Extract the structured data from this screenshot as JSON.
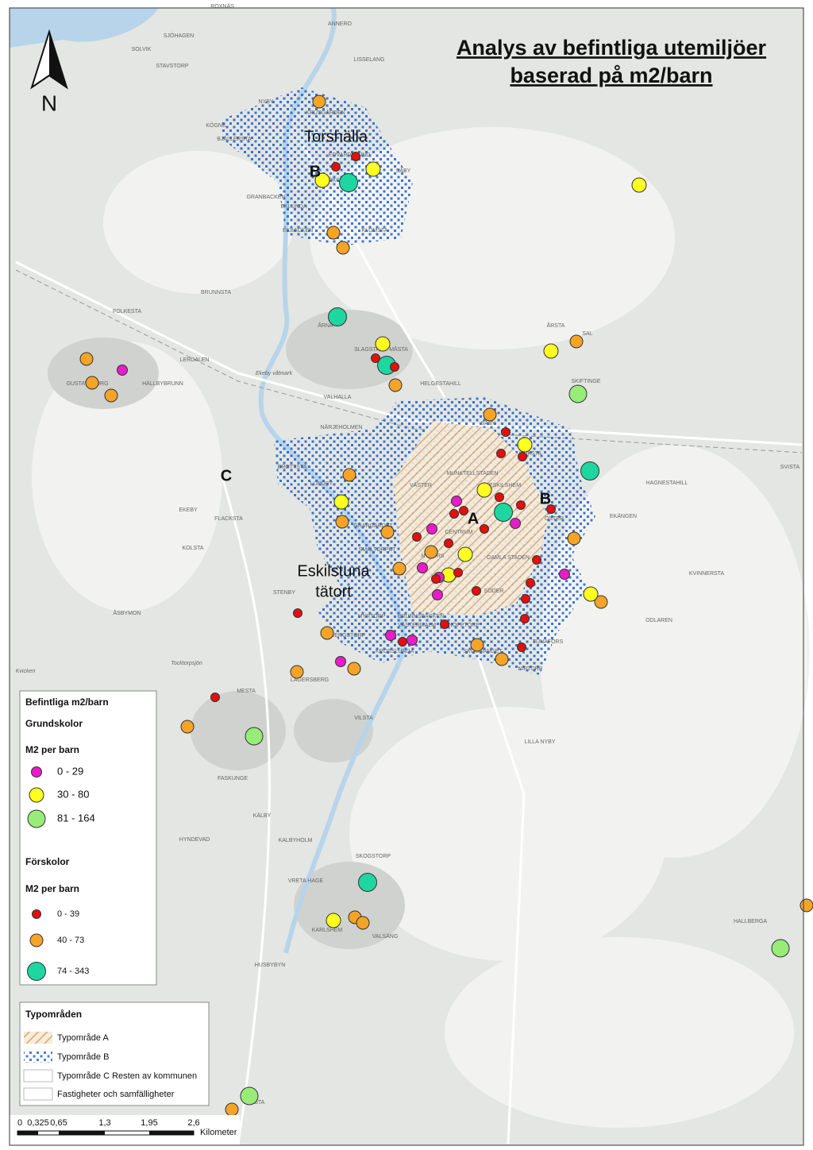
{
  "title_line1": "Analys av befintliga utemiljöer",
  "title_line2": "baserad på m2/barn",
  "north_label": "N",
  "area_labels": [
    "Torshälla",
    "Eskilstuna",
    "tätort",
    "A",
    "B",
    "B",
    "C"
  ],
  "legend_schools": {
    "title": "Befintliga m2/barn",
    "group1": "Grundskolor",
    "unit1": "M2 per barn",
    "classes1": [
      {
        "label": "0 - 29",
        "color": "#e81cc8"
      },
      {
        "label": "30 - 80",
        "color": "#ffff20"
      },
      {
        "label": "81 - 164",
        "color": "#98ec78"
      }
    ],
    "group2": "Förskolor",
    "unit2": "M2 per barn",
    "classes2": [
      {
        "label": "0 - 39",
        "color": "#e60e0e"
      },
      {
        "label": "40 - 73",
        "color": "#f5a428"
      },
      {
        "label": "74 - 343",
        "color": "#1ed6a0"
      }
    ]
  },
  "legend_types": {
    "title": "Typområden",
    "items": [
      "Typområde A",
      "Typområde B",
      "Typområde C Resten av kommunen",
      "Fastigheter och samfälligheter"
    ]
  },
  "scale_bar": {
    "labels": [
      "0",
      "0,325",
      "0,65",
      "1,3",
      "1,95",
      "2,6"
    ],
    "unit": "Kilometer"
  },
  "place_names": [
    "ANNERO",
    "ROXNÄS",
    "SJÖHAGEN",
    "SOLVIK",
    "STAVSTORP",
    "LISSELANG",
    "NYBY",
    "KRUSGÅRDEN",
    "KÖGNE",
    "BJÄLLERSTA",
    "EDVARDSLUND",
    "SÄBY",
    "GÖKSTEN",
    "GRANBACKEN",
    "EKLUNDA",
    "EKBACKEN",
    "KLOMSTA",
    "BRUNNSTA",
    "FOLKESTA",
    "ÅRNA",
    "SLAGSTA",
    "MÅSTA",
    "ÅRSTA",
    "SAL",
    "LERDALEN",
    "GUSTAVSBORG",
    "HÄLLBYBRUNN",
    "HELGESTAHILL",
    "VALHALLA",
    "SKIFTINGE",
    "NÄRJEHOLMEN",
    "SÄBY",
    "ROKSTA",
    "BROTTSTA",
    "VÄSTER",
    "MUNKTELLSTADEN",
    "ESKILSHEM",
    "LUNDBY",
    "HAGNESTAHILL",
    "SVISTA",
    "EKEBY",
    "FLACKSTA",
    "ÖSTER",
    "EKÄNGEN",
    "GRANGÄRDET",
    "CENTRUM",
    "KOLSTA",
    "SMALTORPET",
    "NYFORS",
    "GAMLA STADEN",
    "SÖDER",
    "STENBY",
    "KVINNERSTA",
    "ÅSBYMON",
    "MYRTORP",
    "BRUNNSBACKEN",
    "VÄSTERMALM",
    "SNOPPTORP",
    "ODLAREN",
    "FÅBERGSTORP",
    "KROSSLUNDA",
    "SKOGSÄNGET",
    "TUNAFORS",
    "NIPTORP",
    "LAGERSBERG",
    "MESTA",
    "VILSTA",
    "LILLA NYBY",
    "FASKUNGE",
    "KÄLBY",
    "HYNDEVAD",
    "KALBYHOLM",
    "SKOGSTORP",
    "VRETA HAGE",
    "KARLSHEM",
    "VALSÄNG",
    "HUSBYBYN",
    "HALLBERGA",
    "HALSTA",
    "Kvicken",
    "Tocktorpsjön",
    "Ekeby våtmark"
  ]
}
